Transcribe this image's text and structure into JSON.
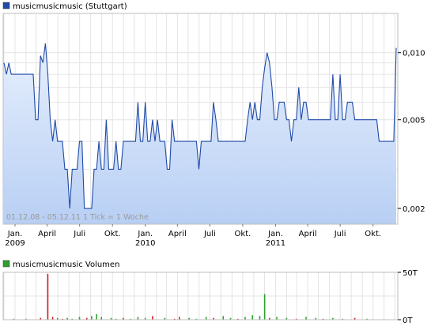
{
  "chart_data": [
    {
      "type": "area",
      "legend": {
        "label": "musicmusicmusic (Stuttgart)",
        "color": "#1f4aa8",
        "position": "top-left"
      },
      "footnote": "01.12.08 - 05.12.11   1 Tick = 1 Woche",
      "x_ticks": [
        {
          "label": "Jan.",
          "year": "2009",
          "date": "2009-01"
        },
        {
          "label": "April",
          "year": "",
          "date": "2009-04"
        },
        {
          "label": "Juli",
          "year": "",
          "date": "2009-07"
        },
        {
          "label": "Okt.",
          "year": "",
          "date": "2009-10"
        },
        {
          "label": "Jan.",
          "year": "2010",
          "date": "2010-01"
        },
        {
          "label": "April",
          "year": "",
          "date": "2010-04"
        },
        {
          "label": "Juli",
          "year": "",
          "date": "2010-07"
        },
        {
          "label": "Okt.",
          "year": "",
          "date": "2010-10"
        },
        {
          "label": "Jan.",
          "year": "2011",
          "date": "2011-01"
        },
        {
          "label": "April",
          "year": "",
          "date": "2011-04"
        },
        {
          "label": "Juli",
          "year": "",
          "date": "2011-07"
        },
        {
          "label": "Okt.",
          "year": "",
          "date": "2011-10"
        }
      ],
      "y_axis": {
        "scale": "log",
        "ylim": [
          0.0017,
          0.015
        ],
        "position": "right",
        "ticks": [
          {
            "value": 0.002,
            "label": "0,002"
          },
          {
            "value": 0.005,
            "label": "0,005"
          },
          {
            "value": 0.01,
            "label": "0,010"
          }
        ]
      },
      "grid": true,
      "line_color": "#1f4aa8",
      "fill_top": "#e6effd",
      "fill_bottom": "#b8cff4",
      "series": [
        {
          "values": [
            0.009,
            0.008,
            0.009,
            0.008,
            0.008,
            0.008,
            0.008,
            0.008,
            0.008,
            0.008,
            0.008,
            0.008,
            0.008,
            0.005,
            0.005,
            0.0097,
            0.009,
            0.011,
            0.008,
            0.005,
            0.004,
            0.005,
            0.004,
            0.004,
            0.004,
            0.003,
            0.003,
            0.002,
            0.003,
            0.003,
            0.003,
            0.004,
            0.004,
            0.002,
            0.002,
            0.002,
            0.002,
            0.003,
            0.003,
            0.004,
            0.003,
            0.003,
            0.005,
            0.003,
            0.003,
            0.003,
            0.004,
            0.003,
            0.003,
            0.004,
            0.004,
            0.004,
            0.004,
            0.004,
            0.004,
            0.006,
            0.004,
            0.004,
            0.006,
            0.004,
            0.004,
            0.005,
            0.004,
            0.005,
            0.004,
            0.004,
            0.004,
            0.003,
            0.003,
            0.005,
            0.004,
            0.004,
            0.004,
            0.004,
            0.004,
            0.004,
            0.004,
            0.004,
            0.004,
            0.004,
            0.003,
            0.004,
            0.004,
            0.004,
            0.004,
            0.004,
            0.006,
            0.005,
            0.004,
            0.004,
            0.004,
            0.004,
            0.004,
            0.004,
            0.004,
            0.004,
            0.004,
            0.004,
            0.004,
            0.004,
            0.005,
            0.006,
            0.005,
            0.006,
            0.005,
            0.005,
            0.007,
            0.0085,
            0.01,
            0.009,
            0.007,
            0.005,
            0.005,
            0.006,
            0.006,
            0.006,
            0.005,
            0.005,
            0.004,
            0.005,
            0.005,
            0.007,
            0.005,
            0.006,
            0.006,
            0.005,
            0.005,
            0.005,
            0.005,
            0.005,
            0.005,
            0.005,
            0.005,
            0.005,
            0.005,
            0.008,
            0.005,
            0.005,
            0.008,
            0.005,
            0.005,
            0.006,
            0.006,
            0.006,
            0.005,
            0.005,
            0.005,
            0.005,
            0.005,
            0.005,
            0.005,
            0.005,
            0.005,
            0.005,
            0.004,
            0.004,
            0.004,
            0.004,
            0.004,
            0.004,
            0.004,
            0.0105
          ]
        }
      ]
    },
    {
      "type": "bar",
      "legend": {
        "label": "musicmusicmusic Volumen",
        "color": "#2ea02e",
        "position": "top-left"
      },
      "y_axis": {
        "position": "right",
        "ylim": [
          0,
          50
        ],
        "unit": "T",
        "ticks": [
          {
            "value": 50,
            "label": "50T"
          },
          {
            "value": 0,
            "label": "0T"
          }
        ]
      },
      "grid": true,
      "up_color": "#2ea02e",
      "down_color": "#d42020",
      "bars": [
        {
          "week": 4,
          "value": 1,
          "dir": "up"
        },
        {
          "week": 9,
          "value": 1,
          "dir": "up"
        },
        {
          "week": 15,
          "value": 2,
          "dir": "down"
        },
        {
          "week": 18,
          "value": 50,
          "dir": "down"
        },
        {
          "week": 20,
          "value": 3,
          "dir": "down"
        },
        {
          "week": 22,
          "value": 2,
          "dir": "up"
        },
        {
          "week": 24,
          "value": 1,
          "dir": "down"
        },
        {
          "week": 26,
          "value": 2,
          "dir": "up"
        },
        {
          "week": 28,
          "value": 1,
          "dir": "up"
        },
        {
          "week": 31,
          "value": 3,
          "dir": "up"
        },
        {
          "week": 34,
          "value": 2,
          "dir": "down"
        },
        {
          "week": 36,
          "value": 4,
          "dir": "up"
        },
        {
          "week": 38,
          "value": 6,
          "dir": "up"
        },
        {
          "week": 40,
          "value": 3,
          "dir": "up"
        },
        {
          "week": 44,
          "value": 2,
          "dir": "up"
        },
        {
          "week": 46,
          "value": 1,
          "dir": "up"
        },
        {
          "week": 49,
          "value": 2,
          "dir": "down"
        },
        {
          "week": 52,
          "value": 1,
          "dir": "up"
        },
        {
          "week": 55,
          "value": 3,
          "dir": "up"
        },
        {
          "week": 58,
          "value": 2,
          "dir": "up"
        },
        {
          "week": 61,
          "value": 4,
          "dir": "down"
        },
        {
          "week": 66,
          "value": 2,
          "dir": "up"
        },
        {
          "week": 70,
          "value": 1,
          "dir": "down"
        },
        {
          "week": 72,
          "value": 3,
          "dir": "down"
        },
        {
          "week": 76,
          "value": 2,
          "dir": "up"
        },
        {
          "week": 79,
          "value": 1,
          "dir": "up"
        },
        {
          "week": 83,
          "value": 3,
          "dir": "up"
        },
        {
          "week": 86,
          "value": 2,
          "dir": "down"
        },
        {
          "week": 90,
          "value": 4,
          "dir": "up"
        },
        {
          "week": 93,
          "value": 2,
          "dir": "up"
        },
        {
          "week": 96,
          "value": 1,
          "dir": "down"
        },
        {
          "week": 99,
          "value": 3,
          "dir": "up"
        },
        {
          "week": 102,
          "value": 5,
          "dir": "up"
        },
        {
          "week": 105,
          "value": 4,
          "dir": "up"
        },
        {
          "week": 107,
          "value": 28,
          "dir": "up"
        },
        {
          "week": 109,
          "value": 2,
          "dir": "down"
        },
        {
          "week": 112,
          "value": 3,
          "dir": "up"
        },
        {
          "week": 116,
          "value": 2,
          "dir": "up"
        },
        {
          "week": 120,
          "value": 1,
          "dir": "down"
        },
        {
          "week": 124,
          "value": 3,
          "dir": "up"
        },
        {
          "week": 128,
          "value": 2,
          "dir": "up"
        },
        {
          "week": 131,
          "value": 1,
          "dir": "down"
        },
        {
          "week": 135,
          "value": 2,
          "dir": "up"
        },
        {
          "week": 139,
          "value": 1,
          "dir": "up"
        },
        {
          "week": 144,
          "value": 2,
          "dir": "down"
        },
        {
          "week": 149,
          "value": 1,
          "dir": "up"
        }
      ]
    }
  ]
}
